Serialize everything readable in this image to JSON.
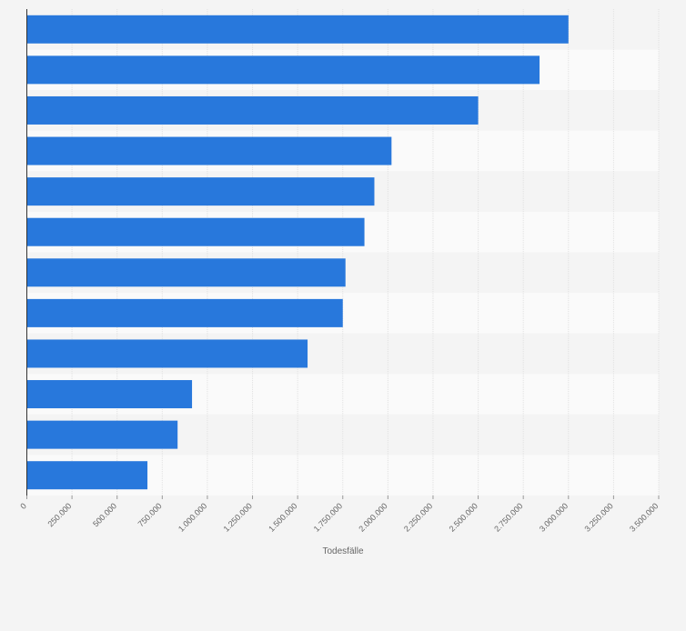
{
  "chart_data": {
    "type": "bar",
    "orientation": "horizontal",
    "title": "",
    "xlabel": "Todesfälle",
    "ylabel": "",
    "xlim": [
      0,
      3500000
    ],
    "grid": true,
    "bar_color": "#2878dc",
    "band_colors": [
      "#f4f4f4",
      "#fafafa"
    ],
    "categories": [
      "",
      "",
      "",
      "",
      "",
      "",
      "",
      "",
      "",
      "",
      "",
      ""
    ],
    "values": [
      3000000,
      2840000,
      2500000,
      2020000,
      1925000,
      1870000,
      1765000,
      1750000,
      1555000,
      915000,
      835000,
      668000
    ],
    "ticks": [
      0,
      250000,
      500000,
      750000,
      1000000,
      1250000,
      1500000,
      1750000,
      2000000,
      2250000,
      2500000,
      2750000,
      3000000,
      3250000,
      3500000
    ],
    "tick_labels": [
      "0",
      "250.000",
      "500.000",
      "750.000",
      "1.000.000",
      "1.250.000",
      "1.500.000",
      "1.750.000",
      "2.000.000",
      "2.250.000",
      "2.500.000",
      "2.750.000",
      "3.000.000",
      "3.250.000",
      "3.500.000"
    ]
  }
}
